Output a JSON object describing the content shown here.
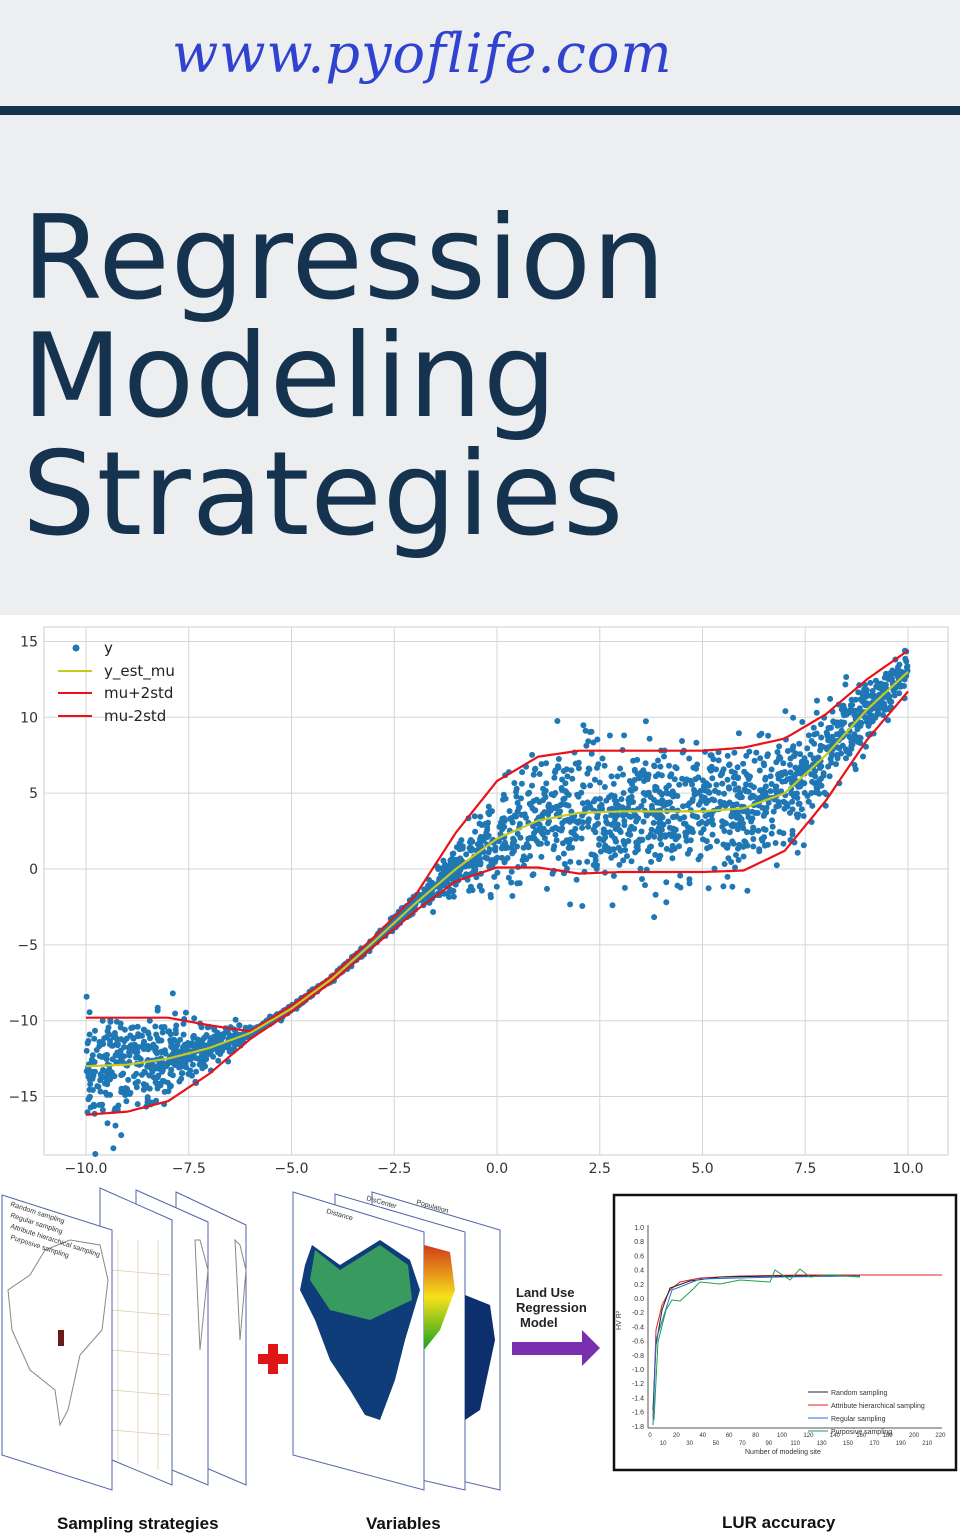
{
  "header": {
    "site": "www.pyoflife.com",
    "title_lines": [
      "Regression",
      "Modeling",
      "Strategies"
    ]
  },
  "chart_data": {
    "type": "scatter",
    "title": "",
    "xlabel": "",
    "ylabel": "",
    "xlim": [
      -10.8,
      10.8
    ],
    "ylim": [
      -18,
      16
    ],
    "xticks": [
      "−10.0",
      "−7.5",
      "−5.0",
      "−2.5",
      "0.0",
      "2.5",
      "5.0",
      "7.5",
      "10.0"
    ],
    "xtick_values": [
      -10,
      -7.5,
      -5,
      -2.5,
      0,
      2.5,
      5,
      7.5,
      10
    ],
    "yticks": [
      "15",
      "10",
      "5",
      "0",
      "−5",
      "−10",
      "−15"
    ],
    "ytick_values": [
      15,
      10,
      5,
      0,
      -5,
      -10,
      -15
    ],
    "grid": true,
    "legend_position": "top-left",
    "x": [
      -10,
      -9,
      -8,
      -7,
      -6,
      -5,
      -4,
      -3,
      -2,
      -1,
      0,
      1,
      2,
      3,
      4,
      5,
      6,
      7,
      8,
      9,
      10
    ],
    "series": [
      {
        "name": "y",
        "kind": "scatter",
        "color": "#1f77b4"
      },
      {
        "name": "y_est_mu",
        "kind": "line",
        "color": "#c8c81e",
        "values": [
          -13,
          -12.9,
          -12.5,
          -11.8,
          -10.8,
          -9.2,
          -7.2,
          -4.8,
          -2.3,
          0,
          2.0,
          3.2,
          3.7,
          3.8,
          3.8,
          3.8,
          4.0,
          5.0,
          7.5,
          10.5,
          13
        ]
      },
      {
        "name": "mu+2std",
        "kind": "line",
        "color": "#e8131a",
        "values": [
          -9.8,
          -9.8,
          -9.8,
          -10.3,
          -10.7,
          -9.0,
          -7.0,
          -4.5,
          -1.8,
          2.4,
          5.8,
          7.4,
          7.8,
          7.8,
          7.8,
          7.8,
          8.0,
          8.6,
          10.2,
          12.5,
          14.4
        ]
      },
      {
        "name": "mu-2std",
        "kind": "line",
        "color": "#e8131a",
        "values": [
          -16.2,
          -16.0,
          -15.3,
          -13.5,
          -11.2,
          -9.4,
          -7.4,
          -5.1,
          -2.8,
          -0.8,
          0.1,
          0.1,
          -0.3,
          -0.2,
          -0.2,
          -0.2,
          -0.1,
          1.2,
          4.5,
          8.5,
          11.7
        ]
      }
    ]
  },
  "diagram": {
    "sampling_panels": [
      "Random sampling",
      "Regular sampling",
      "Attribute hierarchical sampling",
      "Purposive sampling"
    ],
    "variable_panels": [
      "Distance",
      "DisCenter",
      "Population"
    ],
    "arrow_label_lines": [
      "Land Use",
      "Regression",
      "Model"
    ],
    "captions": {
      "sampling": "Sampling strategies",
      "variables": "Variables",
      "accuracy": "LUR accuracy"
    },
    "lur_chart": {
      "ylabel": "HV R²",
      "xlabel": "Number of modeling site",
      "yticks": [
        "1.0",
        "0.8",
        "0.6",
        "0.4",
        "0.2",
        "0.0",
        "-0.2",
        "-0.4",
        "-0.6",
        "-0.8",
        "-1.0",
        "-1.2",
        "-1.4",
        "-1.6",
        "-1.8"
      ],
      "xticks": [
        "0",
        "10",
        "20",
        "30",
        "40",
        "50",
        "60",
        "70",
        "80",
        "90",
        "100",
        "110",
        "120",
        "130",
        "140",
        "150",
        "160",
        "170",
        "180",
        "190",
        "200",
        "210",
        "220"
      ],
      "legend": [
        "Random sampling",
        "Attribute hierarchical sampling",
        "Regular sampling",
        "Purposive sampling"
      ],
      "colors": [
        "#222222",
        "#e02020",
        "#2a6fd6",
        "#20a050"
      ]
    }
  }
}
